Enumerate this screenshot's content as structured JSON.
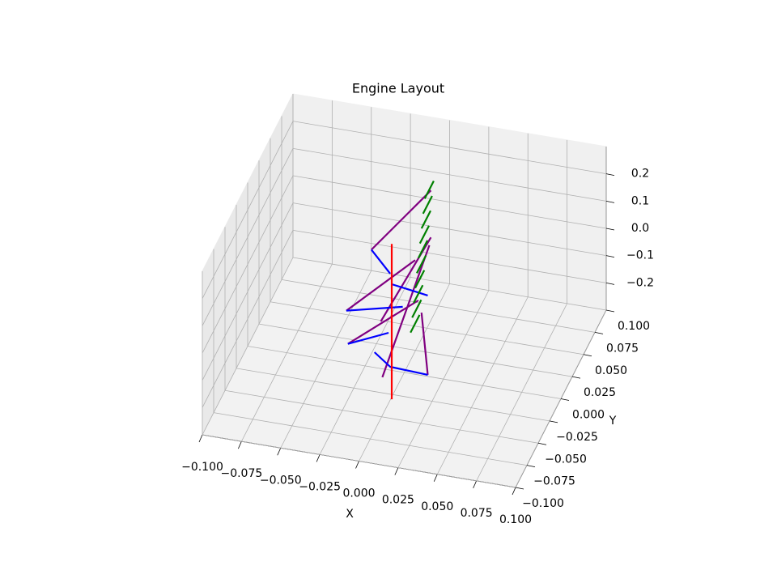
{
  "chart_data": {
    "type": "line3d",
    "title": "Engine Layout",
    "xlabel": "X",
    "ylabel": "Y",
    "xlim": [
      -0.1,
      0.1
    ],
    "ylim": [
      -0.1,
      0.1
    ],
    "zlim": [
      -0.3,
      0.3
    ],
    "xticks": [
      {
        "value": -0.1,
        "label": "−0.100"
      },
      {
        "value": -0.075,
        "label": "−0.075"
      },
      {
        "value": -0.05,
        "label": "−0.050"
      },
      {
        "value": -0.025,
        "label": "−0.025"
      },
      {
        "value": 0,
        "label": "0.000"
      },
      {
        "value": 0.025,
        "label": "0.025"
      },
      {
        "value": 0.05,
        "label": "0.050"
      },
      {
        "value": 0.075,
        "label": "0.075"
      },
      {
        "value": 0.1,
        "label": "0.100"
      }
    ],
    "yticks": [
      {
        "value": -0.1,
        "label": "−0.100"
      },
      {
        "value": -0.075,
        "label": "−0.075"
      },
      {
        "value": -0.05,
        "label": "−0.050"
      },
      {
        "value": -0.025,
        "label": "−0.025"
      },
      {
        "value": 0,
        "label": "0.000"
      },
      {
        "value": 0.025,
        "label": "0.025"
      },
      {
        "value": 0.05,
        "label": "0.050"
      },
      {
        "value": 0.075,
        "label": "0.075"
      },
      {
        "value": 0.1,
        "label": "0.100"
      }
    ],
    "zticks": [
      {
        "value": -0.2,
        "label": "−0.2"
      },
      {
        "value": -0.1,
        "label": "−0.1"
      },
      {
        "value": 0,
        "label": "0.0"
      },
      0.1,
      0.2
    ],
    "grid": true,
    "series": [
      {
        "color": "#800080",
        "x": [
          0.017,
          -0.021,
          null,
          -0.037,
          0.007,
          null,
          -0.015,
          0.017,
          null,
          -0.036,
          0.009,
          null,
          -0.014,
          0.016,
          null,
          0.011,
          0.015
        ],
        "y": [
          0,
          0,
          null,
          0,
          0,
          null,
          0,
          0,
          null,
          0,
          0,
          null,
          0,
          0,
          null,
          0,
          0
        ],
        "z": [
          0.384,
          0.13,
          null,
          -0.109,
          0.119,
          null,
          -0.127,
          0.212,
          null,
          -0.23,
          -0.027,
          null,
          -0.331,
          0.182,
          null,
          -0.07,
          -0.294
        ]
      },
      {
        "color": "#0000ff",
        "x": [
          -0.021,
          -0.009,
          null,
          -0.008,
          0.015,
          null,
          -0.037,
          -0.001,
          null,
          -0.036,
          -0.01,
          null,
          -0.019,
          -0.009,
          0.015
        ],
        "y": [
          0,
          0,
          null,
          0,
          0,
          null,
          0,
          0,
          null,
          0,
          0,
          null,
          0,
          0,
          0
        ],
        "z": [
          0.13,
          0.054,
          null,
          0.016,
          -0.003,
          null,
          -0.109,
          -0.06,
          null,
          -0.23,
          -0.164,
          null,
          -0.244,
          -0.288,
          -0.294
        ]
      },
      {
        "color": "#008000",
        "x": [
          0.004,
          0.004,
          null,
          0.005,
          0.005,
          null,
          0.006,
          0.006,
          null,
          0.007,
          0.007,
          null,
          0.008,
          0.008,
          null,
          0.009,
          0.009,
          null,
          0.01,
          0.01,
          null,
          0.011,
          0.011,
          null,
          0.012,
          0.012,
          null,
          0.013,
          0.013
        ],
        "y": [
          0,
          0.02,
          null,
          0,
          0.02,
          null,
          0,
          0.02,
          null,
          0,
          0.02,
          null,
          0,
          0.02,
          null,
          0,
          0.02,
          null,
          0,
          0.02,
          null,
          0,
          0.02,
          null,
          0,
          0.02,
          null,
          0,
          0.02
        ],
        "z": [
          -0.15,
          -0.15,
          null,
          -0.094,
          -0.094,
          null,
          -0.039,
          -0.039,
          null,
          0.017,
          0.017,
          null,
          0.072,
          0.072,
          null,
          0.128,
          0.128,
          null,
          0.183,
          0.183,
          null,
          0.239,
          0.239,
          null,
          0.294,
          0.294,
          null,
          0.35,
          0.35
        ]
      },
      {
        "color": "#ff0000",
        "x": [
          -0.008,
          -0.008
        ],
        "y": [
          0,
          0
        ],
        "z": [
          0.164,
          -0.406
        ]
      }
    ]
  }
}
